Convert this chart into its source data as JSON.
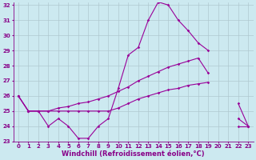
{
  "xlabel": "Windchill (Refroidissement éolien,°C)",
  "x": [
    0,
    1,
    2,
    3,
    4,
    5,
    6,
    7,
    8,
    9,
    10,
    11,
    12,
    13,
    14,
    15,
    16,
    17,
    18,
    19,
    20,
    21,
    22,
    23
  ],
  "series1": [
    26.0,
    25.0,
    25.0,
    24.0,
    24.5,
    24.0,
    23.2,
    23.2,
    24.0,
    24.5,
    26.5,
    28.7,
    29.2,
    31.0,
    32.2,
    32.0,
    31.0,
    30.3,
    29.5,
    29.0,
    null,
    null,
    24.5,
    24.0
  ],
  "series2": [
    26.0,
    25.0,
    25.0,
    25.0,
    25.2,
    25.3,
    25.5,
    25.6,
    25.8,
    26.0,
    26.3,
    26.6,
    27.0,
    27.3,
    27.6,
    27.9,
    28.1,
    28.3,
    28.5,
    27.5,
    null,
    null,
    25.5,
    24.0
  ],
  "series3": [
    26.0,
    25.0,
    25.0,
    25.0,
    25.0,
    25.0,
    25.0,
    25.0,
    25.0,
    25.0,
    25.2,
    25.5,
    25.8,
    26.0,
    26.2,
    26.4,
    26.5,
    26.7,
    26.8,
    26.9,
    null,
    null,
    24.0,
    24.0
  ],
  "line_color": "#990099",
  "marker": "D",
  "marker_size": 1.8,
  "bg_color": "#cce9f0",
  "grid_color": "#b0c8d0",
  "ylim": [
    23,
    32
  ],
  "xlim": [
    -0.5,
    23.5
  ],
  "yticks": [
    23,
    24,
    25,
    26,
    27,
    28,
    29,
    30,
    31,
    32
  ],
  "xticks": [
    0,
    1,
    2,
    3,
    4,
    5,
    6,
    7,
    8,
    9,
    10,
    11,
    12,
    13,
    14,
    15,
    16,
    17,
    18,
    19,
    20,
    21,
    22,
    23
  ],
  "tick_fontsize": 5.0,
  "xlabel_fontsize": 6.0,
  "label_color": "#880088"
}
